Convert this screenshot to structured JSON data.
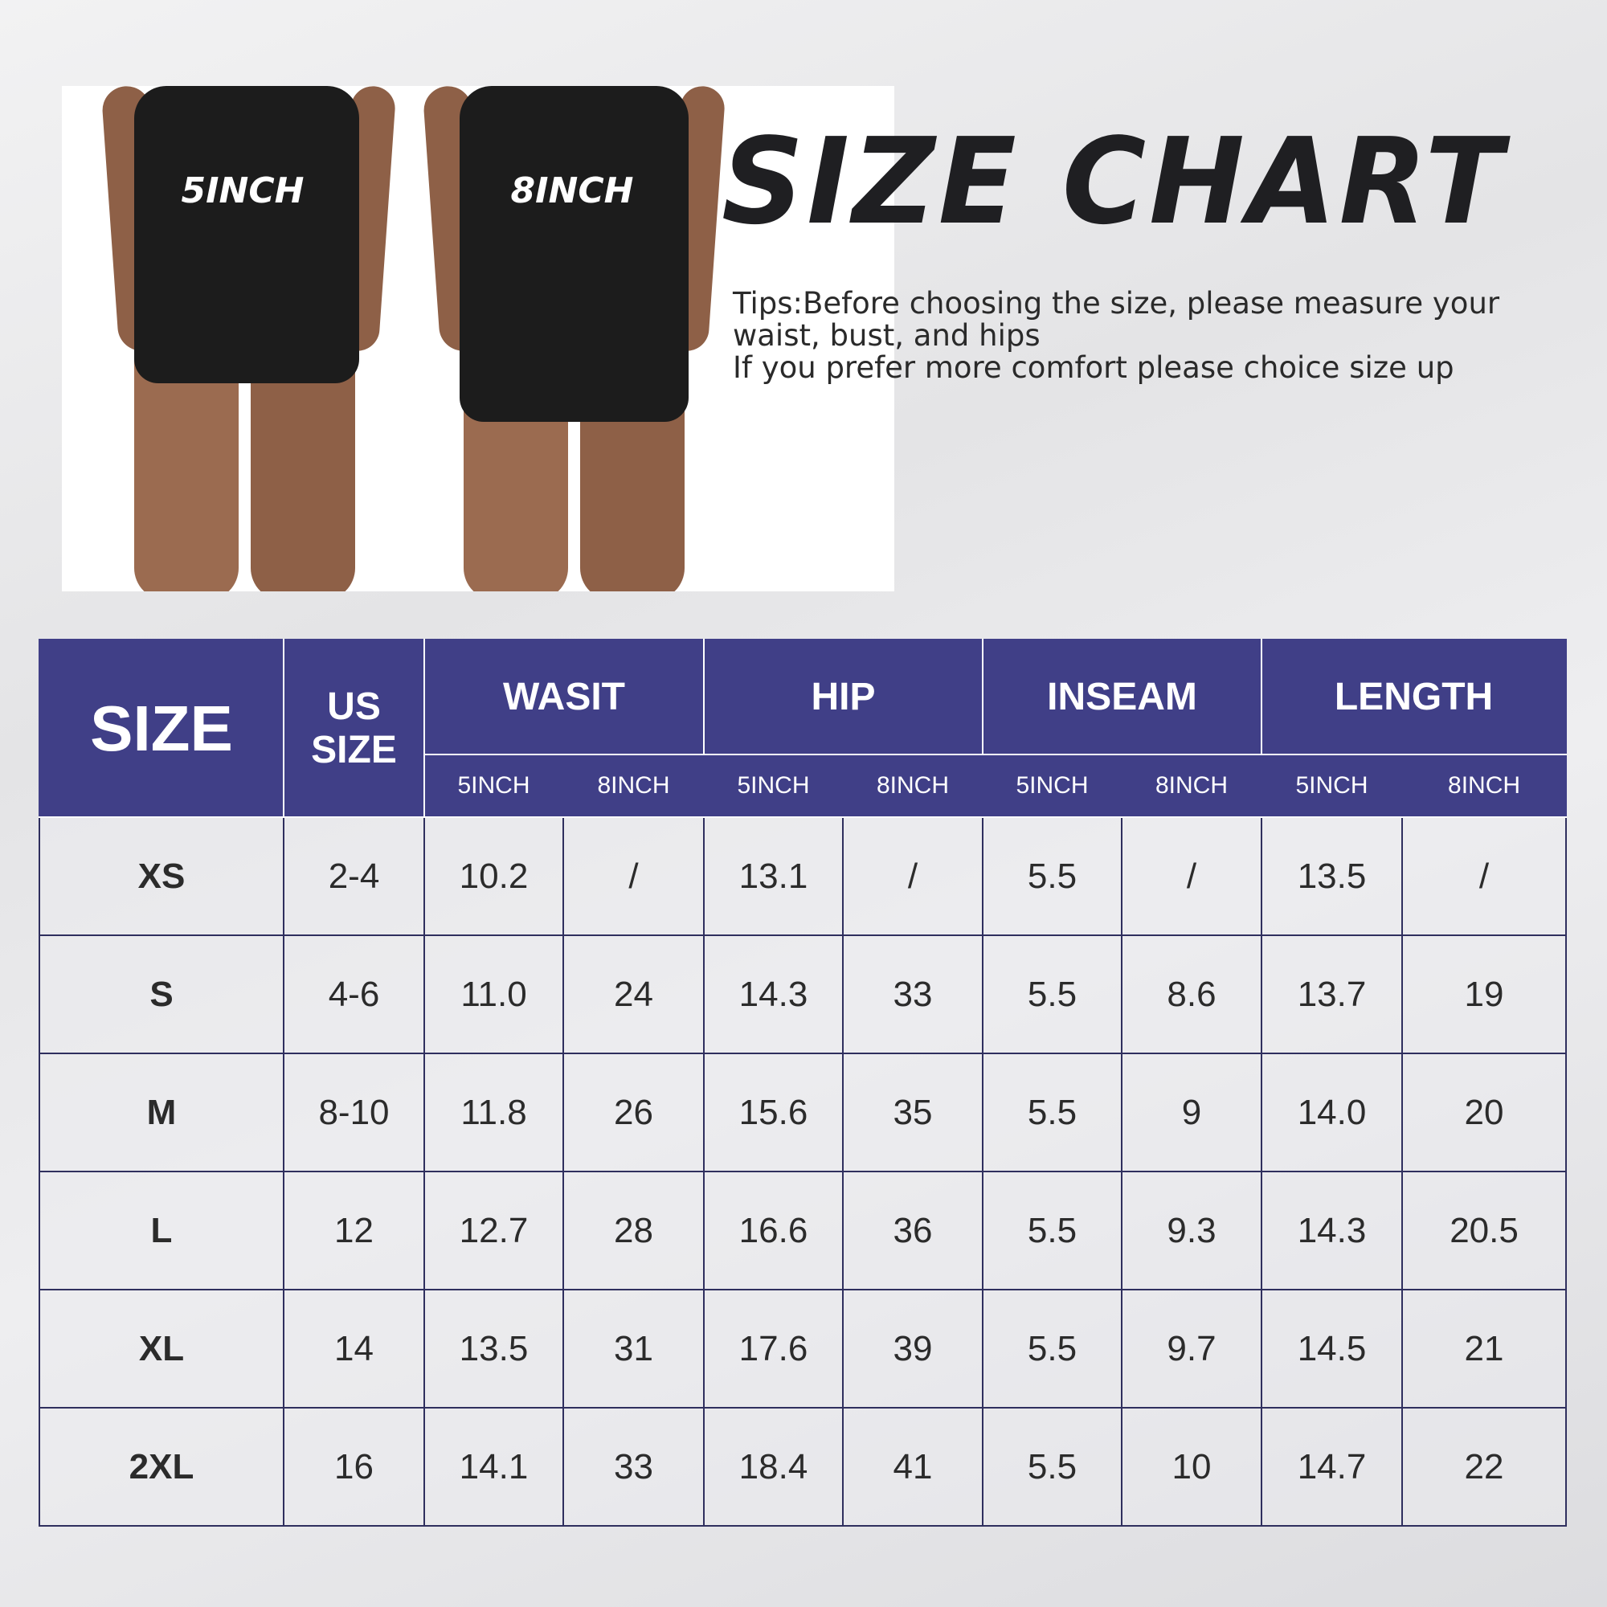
{
  "photo": {
    "labels": [
      "5INCH",
      "8INCH"
    ]
  },
  "title": "SIZE CHART",
  "tips": [
    "Tips:Before choosing the size,  please measure your",
    "waist, bust, and hips",
    "If you prefer more comfort please choice size up"
  ],
  "colors": {
    "header_bg": "#403f87",
    "header_text": "#ffffff",
    "title": "#1f1f22"
  },
  "table": {
    "size_header": "SIZE",
    "us_header": [
      "US",
      "SIZE"
    ],
    "groups": [
      "WASIT",
      "HIP",
      "INSEAM",
      "LENGTH"
    ],
    "sub": [
      "5INCH",
      "8INCH"
    ],
    "rows": [
      [
        "XS",
        "2-4",
        "10.2",
        "/",
        "13.1",
        "/",
        "5.5",
        "/",
        "13.5",
        "/"
      ],
      [
        "S",
        "4-6",
        "11.0",
        "24",
        "14.3",
        "33",
        "5.5",
        "8.6",
        "13.7",
        "19"
      ],
      [
        "M",
        "8-10",
        "11.8",
        "26",
        "15.6",
        "35",
        "5.5",
        "9",
        "14.0",
        "20"
      ],
      [
        "L",
        "12",
        "12.7",
        "28",
        "16.6",
        "36",
        "5.5",
        "9.3",
        "14.3",
        "20.5"
      ],
      [
        "XL",
        "14",
        "13.5",
        "31",
        "17.6",
        "39",
        "5.5",
        "9.7",
        "14.5",
        "21"
      ],
      [
        "2XL",
        "16",
        "14.1",
        "33",
        "18.4",
        "41",
        "5.5",
        "10",
        "14.7",
        "22"
      ]
    ]
  }
}
